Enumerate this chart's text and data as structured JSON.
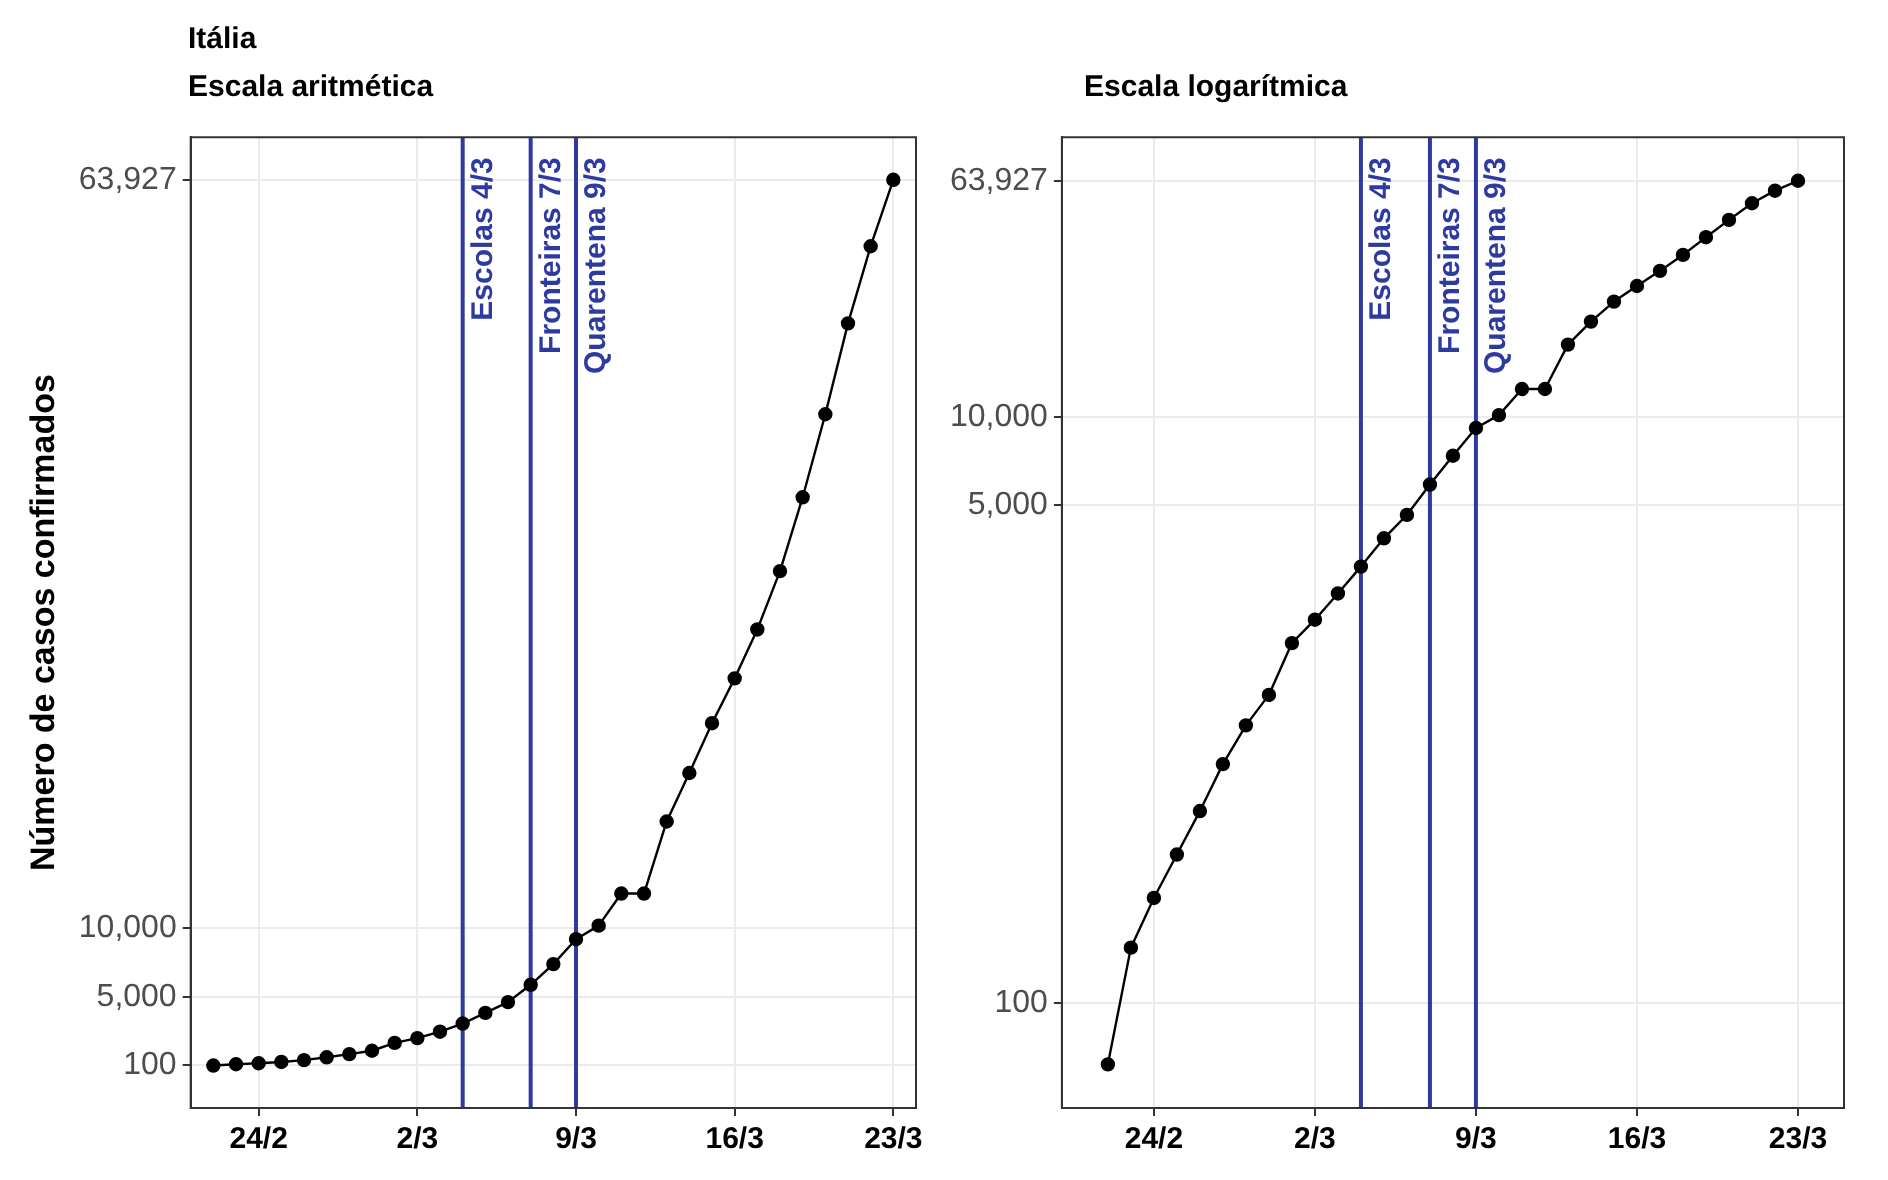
{
  "chart_data": [
    {
      "type": "line",
      "title": "Itália",
      "subtitle": "Escala aritmética",
      "ylabel": "Número de casos confirmados",
      "x": [
        "--02-22",
        "--02-23",
        "--02-24",
        "--02-25",
        "--02-26",
        "--02-27",
        "--02-28",
        "--02-29",
        "--03-01",
        "--03-02",
        "--03-03",
        "--03-04",
        "--03-05",
        "--03-06",
        "--03-07",
        "--03-08",
        "--03-09",
        "--03-10",
        "--03-11",
        "--03-12",
        "--03-13",
        "--03-14",
        "--03-15",
        "--03-16",
        "--03-17",
        "--03-18",
        "--03-19",
        "--03-20",
        "--03-21",
        "--03-22",
        "--03-23"
      ],
      "series": [
        {
          "color": "#000000",
          "values": [
            62,
            155,
            229,
            322,
            453,
            655,
            888,
            1128,
            1694,
            2036,
            2502,
            3089,
            3858,
            4636,
            5883,
            7375,
            9172,
            10149,
            12462,
            12462,
            17660,
            21157,
            24747,
            27980,
            31506,
            35713,
            41035,
            47021,
            53578,
            59138,
            63927
          ]
        }
      ],
      "xlim": [
        "--02-21",
        "--03-24"
      ],
      "xticks": [
        {
          "value": "--02-24",
          "label": "24/2"
        },
        {
          "value": "--03-02",
          "label": "2/3"
        },
        {
          "value": "--03-09",
          "label": "9/3"
        },
        {
          "value": "--03-16",
          "label": "16/3"
        },
        {
          "value": "--03-23",
          "label": "23/3"
        }
      ],
      "ylim": [
        -3000,
        67000
      ],
      "yticks": [
        100,
        {
          "value": 5000,
          "label": "5,000"
        },
        {
          "value": 10000,
          "label": "10,000"
        },
        {
          "value": 63927,
          "label": "63,927"
        }
      ],
      "ref_lines": [
        {
          "axis": "x",
          "value": "--03-04",
          "label": "Escolas 4/3",
          "color": "#2e3a9f"
        },
        {
          "axis": "x",
          "value": "--03-07",
          "label": "Fronteiras 7/3",
          "color": "#2e3a9f"
        },
        {
          "axis": "x",
          "value": "--03-09",
          "label": "Quarentena 9/3",
          "color": "#2e3a9f"
        }
      ],
      "grid": true,
      "marker": "circle",
      "line_style": "solid"
    },
    {
      "type": "line",
      "title": "Escala logarítmica",
      "x": [
        "--02-22",
        "--02-23",
        "--02-24",
        "--02-25",
        "--02-26",
        "--02-27",
        "--02-28",
        "--02-29",
        "--03-01",
        "--03-02",
        "--03-03",
        "--03-04",
        "--03-05",
        "--03-06",
        "--03-07",
        "--03-08",
        "--03-09",
        "--03-10",
        "--03-11",
        "--03-12",
        "--03-13",
        "--03-14",
        "--03-15",
        "--03-16",
        "--03-17",
        "--03-18",
        "--03-19",
        "--03-20",
        "--03-21",
        "--03-22",
        "--03-23"
      ],
      "series": [
        {
          "color": "#000000",
          "values": [
            62,
            155,
            229,
            322,
            453,
            655,
            888,
            1128,
            1694,
            2036,
            2502,
            3089,
            3858,
            4636,
            5883,
            7375,
            9172,
            10149,
            12462,
            12462,
            17660,
            21157,
            24747,
            27980,
            31506,
            35713,
            41035,
            47021,
            53578,
            59138,
            63927
          ]
        }
      ],
      "xlim": [
        "--02-20",
        "--03-25"
      ],
      "xticks": [
        {
          "value": "--02-24",
          "label": "24/2"
        },
        {
          "value": "--03-02",
          "label": "2/3"
        },
        {
          "value": "--03-09",
          "label": "9/3"
        },
        {
          "value": "--03-16",
          "label": "16/3"
        },
        {
          "value": "--03-23",
          "label": "23/3"
        }
      ],
      "ylim": [
        44,
        90000
      ],
      "yticks": [
        100,
        {
          "value": 5000,
          "label": "5,000"
        },
        {
          "value": 10000,
          "label": "10,000"
        },
        {
          "value": 63927,
          "label": "63,927"
        }
      ],
      "ref_lines": [
        {
          "axis": "x",
          "value": "--03-04",
          "label": "Escolas 4/3",
          "color": "#2e3a9f"
        },
        {
          "axis": "x",
          "value": "--03-07",
          "label": "Fronteiras 7/3",
          "color": "#2e3a9f"
        },
        {
          "axis": "x",
          "value": "--03-09",
          "label": "Quarentena 9/3",
          "color": "#2e3a9f"
        }
      ],
      "log": "y",
      "grid": true,
      "marker": "circle",
      "line_style": "solid"
    }
  ]
}
